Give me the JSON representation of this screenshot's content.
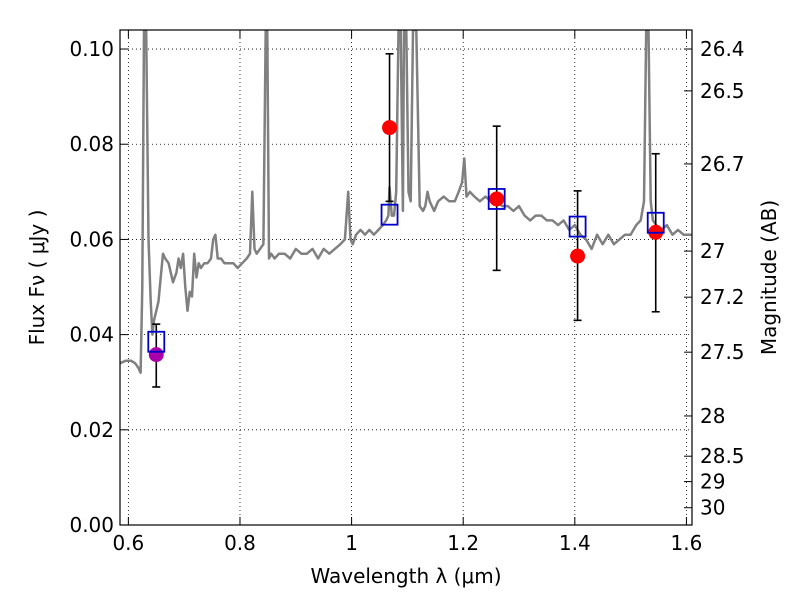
{
  "chart_data": {
    "type": "scatter",
    "xlabel": "Wavelength  λ (μm)",
    "ylabel": "Flux  Fν  ( μJy )",
    "ylabel_right": "Magnitude (AB)",
    "xlim": [
      0.585,
      1.61
    ],
    "ylim": [
      0.0,
      0.104
    ],
    "grid": "dotted",
    "x_ticks": [
      0.6,
      0.8,
      1.0,
      1.2,
      1.4,
      1.6
    ],
    "x_tick_labels": [
      "0.6",
      "0.8",
      "1",
      "1.2",
      "1.4",
      "1.6"
    ],
    "y_ticks": [
      0.0,
      0.02,
      0.04,
      0.06,
      0.08,
      0.1
    ],
    "y_tick_labels": [
      "0.00",
      "0.02",
      "0.04",
      "0.06",
      "0.08",
      "0.10"
    ],
    "right_ticks": [
      26.4,
      26.5,
      26.7,
      27,
      27.2,
      27.5,
      28,
      28.5,
      29,
      30
    ],
    "right_tick_labels": [
      "26.4",
      "26.5",
      "26.7",
      "27",
      "27.2",
      "27.5",
      "28",
      "28.5",
      "29",
      "30"
    ],
    "colors": {
      "model": "#808080",
      "observed": "#ff0000",
      "observed_purple": "#aa00aa",
      "model_boxes": "#0000cc",
      "errorbar": "#000000"
    },
    "series": [
      {
        "kind": "model_spectrum",
        "x": [
          0.585,
          0.595,
          0.605,
          0.612,
          0.618,
          0.622,
          0.625,
          0.628,
          0.632,
          0.636,
          0.64,
          0.643,
          0.646,
          0.65,
          0.654,
          0.658,
          0.662,
          0.666,
          0.672,
          0.68,
          0.686,
          0.69,
          0.694,
          0.698,
          0.702,
          0.706,
          0.71,
          0.714,
          0.718,
          0.722,
          0.726,
          0.73,
          0.736,
          0.742,
          0.748,
          0.752,
          0.756,
          0.76,
          0.766,
          0.772,
          0.78,
          0.788,
          0.796,
          0.804,
          0.812,
          0.818,
          0.822,
          0.826,
          0.83,
          0.836,
          0.842,
          0.846,
          0.849,
          0.852,
          0.856,
          0.862,
          0.87,
          0.88,
          0.89,
          0.9,
          0.91,
          0.92,
          0.93,
          0.94,
          0.95,
          0.96,
          0.97,
          0.98,
          0.988,
          0.994,
          0.998,
          1.002,
          1.008,
          1.016,
          1.024,
          1.032,
          1.04,
          1.048,
          1.056,
          1.062,
          1.066,
          1.068,
          1.072,
          1.076,
          1.08,
          1.084,
          1.088,
          1.092,
          1.094,
          1.098,
          1.102,
          1.106,
          1.11,
          1.116,
          1.122,
          1.128,
          1.132,
          1.136,
          1.14,
          1.144,
          1.148,
          1.155,
          1.165,
          1.175,
          1.185,
          1.192,
          1.198,
          1.202,
          1.206,
          1.212,
          1.22,
          1.23,
          1.24,
          1.25,
          1.26,
          1.27,
          1.28,
          1.29,
          1.3,
          1.31,
          1.32,
          1.33,
          1.34,
          1.35,
          1.36,
          1.37,
          1.38,
          1.39,
          1.4,
          1.41,
          1.42,
          1.43,
          1.44,
          1.45,
          1.46,
          1.47,
          1.48,
          1.49,
          1.5,
          1.51,
          1.518,
          1.524,
          1.528,
          1.532,
          1.536,
          1.54,
          1.546,
          1.555,
          1.565,
          1.575,
          1.585,
          1.595,
          1.61
        ],
        "y": [
          0.034,
          0.0345,
          0.0345,
          0.034,
          0.033,
          0.032,
          0.05,
          0.104,
          0.104,
          0.06,
          0.047,
          0.04,
          0.043,
          0.045,
          0.047,
          0.052,
          0.057,
          0.056,
          0.055,
          0.051,
          0.053,
          0.056,
          0.054,
          0.057,
          0.05,
          0.045,
          0.049,
          0.048,
          0.057,
          0.052,
          0.055,
          0.054,
          0.055,
          0.055,
          0.056,
          0.06,
          0.061,
          0.056,
          0.056,
          0.055,
          0.055,
          0.055,
          0.054,
          0.055,
          0.056,
          0.057,
          0.07,
          0.058,
          0.057,
          0.058,
          0.059,
          0.104,
          0.104,
          0.056,
          0.057,
          0.056,
          0.057,
          0.057,
          0.056,
          0.058,
          0.057,
          0.057,
          0.058,
          0.056,
          0.058,
          0.057,
          0.058,
          0.059,
          0.06,
          0.07,
          0.06,
          0.059,
          0.061,
          0.062,
          0.061,
          0.062,
          0.061,
          0.062,
          0.063,
          0.064,
          0.065,
          0.071,
          0.065,
          0.065,
          0.07,
          0.104,
          0.104,
          0.066,
          0.104,
          0.104,
          0.07,
          0.068,
          0.104,
          0.104,
          0.067,
          0.066,
          0.067,
          0.07,
          0.068,
          0.067,
          0.066,
          0.068,
          0.069,
          0.068,
          0.068,
          0.07,
          0.072,
          0.077,
          0.069,
          0.07,
          0.069,
          0.068,
          0.069,
          0.068,
          0.068,
          0.067,
          0.067,
          0.066,
          0.067,
          0.065,
          0.064,
          0.065,
          0.065,
          0.064,
          0.064,
          0.063,
          0.064,
          0.062,
          0.063,
          0.061,
          0.06,
          0.058,
          0.061,
          0.059,
          0.061,
          0.059,
          0.06,
          0.061,
          0.061,
          0.063,
          0.064,
          0.068,
          0.104,
          0.104,
          0.068,
          0.064,
          0.063,
          0.062,
          0.063,
          0.061,
          0.062,
          0.061,
          0.061
        ]
      },
      {
        "kind": "observed",
        "x": [
          0.65,
          1.068,
          1.26,
          1.405,
          1.545
        ],
        "y": [
          0.0358,
          0.0835,
          0.0685,
          0.0565,
          0.0615
        ],
        "yerr_low": [
          0.029,
          0.068,
          0.0535,
          0.043,
          0.0448
        ],
        "yerr_high": [
          0.0422,
          0.099,
          0.0838,
          0.0702,
          0.078
        ],
        "colors": [
          "#aa00aa",
          "#ff0000",
          "#ff0000",
          "#ff0000",
          "#ff0000"
        ]
      },
      {
        "kind": "model_boxes",
        "x": [
          0.65,
          1.068,
          1.26,
          1.405,
          1.545
        ],
        "y": [
          0.0385,
          0.0652,
          0.0685,
          0.0627,
          0.0635
        ]
      }
    ]
  }
}
